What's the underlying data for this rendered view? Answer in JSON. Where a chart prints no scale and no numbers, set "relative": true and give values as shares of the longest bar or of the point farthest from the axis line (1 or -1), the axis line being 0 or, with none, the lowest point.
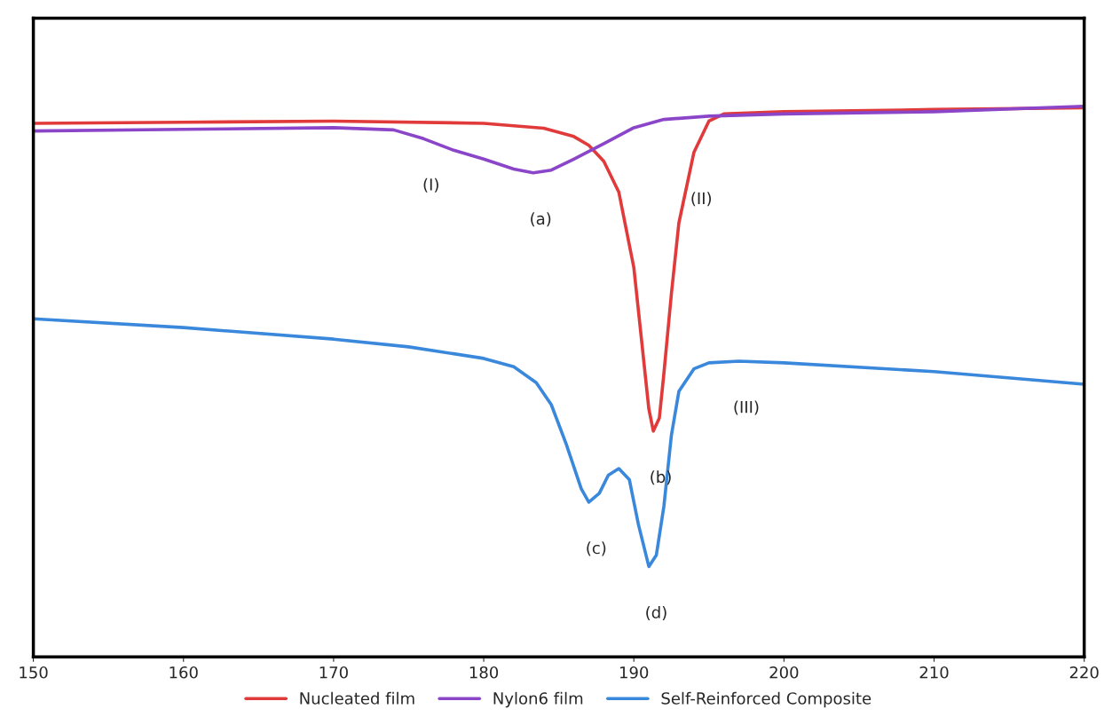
{
  "chart_data": {
    "type": "line",
    "relative": true,
    "xlim": [
      150,
      220
    ],
    "xticks": [
      150,
      160,
      170,
      180,
      190,
      200,
      210,
      220
    ],
    "tick_labels": "x",
    "grid": false,
    "legend": "bottom",
    "series": [
      {
        "name": "Nucleated film",
        "color": "#e03a3a",
        "x": [
          150,
          160,
          170,
          180,
          184,
          186,
          187,
          188,
          189,
          190,
          190.5,
          191,
          191.3,
          191.7,
          192,
          192.5,
          193,
          194,
          195,
          196,
          200,
          210,
          220
        ],
        "values": [
          0.969,
          0.971,
          0.973,
          0.969,
          0.96,
          0.945,
          0.929,
          0.9,
          0.844,
          0.707,
          0.579,
          0.45,
          0.41,
          0.434,
          0.514,
          0.659,
          0.788,
          0.916,
          0.973,
          0.986,
          0.99,
          0.994,
          0.997
        ]
      },
      {
        "name": "Nylon6 film",
        "color": "#8a45c8",
        "x": [
          150,
          160,
          170,
          174,
          176,
          178,
          180,
          182,
          183.3,
          184.5,
          186,
          188,
          190,
          192,
          195,
          200,
          210,
          220
        ],
        "values": [
          0.955,
          0.958,
          0.961,
          0.957,
          0.941,
          0.92,
          0.904,
          0.886,
          0.879,
          0.884,
          0.904,
          0.932,
          0.961,
          0.976,
          0.982,
          0.986,
          0.99,
          1.0
        ]
      },
      {
        "name": "Self-Reinforced Composite",
        "color": "#3a88dc",
        "x": [
          150,
          160,
          170,
          175,
          180,
          182,
          183.5,
          184.5,
          185.5,
          186.5,
          187,
          187.7,
          188.3,
          189,
          189.7,
          190.3,
          191,
          191.5,
          192,
          192.5,
          193,
          194,
          195,
          197,
          200,
          210,
          220
        ],
        "values": [
          0.614,
          0.598,
          0.577,
          0.563,
          0.542,
          0.527,
          0.498,
          0.458,
          0.386,
          0.305,
          0.281,
          0.297,
          0.33,
          0.342,
          0.322,
          0.241,
          0.164,
          0.185,
          0.273,
          0.402,
          0.482,
          0.523,
          0.534,
          0.537,
          0.534,
          0.518,
          0.495
        ]
      }
    ],
    "annotations": [
      {
        "text": "(I)",
        "x": 176,
        "y": 0.941
      },
      {
        "text": "(a)",
        "x": 183.3,
        "y": 0.879
      },
      {
        "text": "(II)",
        "x": 194,
        "y": 0.916
      },
      {
        "text": "(b)",
        "x": 191.3,
        "y": 0.41
      },
      {
        "text": "(III)",
        "x": 197,
        "y": 0.537
      },
      {
        "text": "(c)",
        "x": 187,
        "y": 0.281
      },
      {
        "text": "(d)",
        "x": 191,
        "y": 0.164
      }
    ]
  }
}
